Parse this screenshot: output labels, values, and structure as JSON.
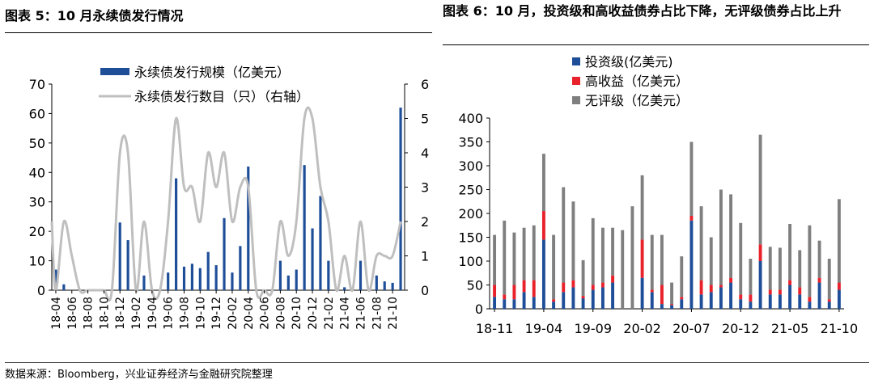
{
  "left_title": "图表 5：10 月永续债发行情况",
  "right_title": "图表 6：10 月，投资级和高收益债券占比下降，无评级债券占比上升",
  "source": "数据来源：Bloomberg，兴业证券经济与金融研究院整理",
  "chart_data": [
    {
      "type": "bar+line",
      "legend": [
        "永续债发行规模（亿美元）",
        "永续债发行数目（只）（右轴）"
      ],
      "ylim": [
        0,
        70
      ],
      "y_ticks": [
        0,
        10,
        20,
        30,
        40,
        50,
        60,
        70
      ],
      "y2lim": [
        0,
        6
      ],
      "y2_ticks": [
        0,
        1,
        2,
        3,
        4,
        5,
        6
      ],
      "x_tick_labels": [
        "18-04",
        "18-06",
        "18-08",
        "18-10",
        "18-12",
        "19-02",
        "19-04",
        "19-06",
        "19-08",
        "19-10",
        "19-12",
        "20-02",
        "20-04",
        "20-06",
        "20-08",
        "20-10",
        "20-12",
        "21-02",
        "21-04",
        "21-06",
        "21-08",
        "21-10"
      ],
      "colors": {
        "bar": "#1F4E99",
        "line": "#BFBFBF"
      },
      "series": [
        {
          "name": "永续债发行规模（亿美元）",
          "kind": "bar",
          "values": [
            7,
            2,
            0,
            0,
            0,
            0,
            0,
            0,
            23,
            17,
            0,
            5,
            0,
            0,
            6,
            38,
            8,
            9,
            7.5,
            13,
            8.5,
            24.5,
            6,
            15,
            42,
            0,
            0,
            0,
            10,
            5,
            7,
            42.5,
            21,
            32,
            10,
            0,
            1,
            0,
            10,
            0,
            5,
            3,
            2.5,
            62
          ]
        },
        {
          "name": "永续债发行数目（只）（右轴）",
          "kind": "line",
          "values": [
            0,
            2,
            1,
            0,
            0,
            0,
            0,
            0,
            4,
            4,
            0,
            2,
            0,
            0,
            2,
            5,
            3,
            3,
            2,
            4,
            3,
            4,
            2,
            3,
            3,
            0,
            0,
            0,
            2,
            1,
            2,
            5,
            5,
            3,
            2,
            0,
            1,
            0,
            2,
            0,
            1,
            1,
            1,
            2
          ]
        }
      ]
    },
    {
      "type": "stacked-bar",
      "legend": [
        "投资级(亿美元)",
        "高收益（亿美元）",
        "无评级（亿美元）"
      ],
      "ylim": [
        0,
        400
      ],
      "y_ticks": [
        0,
        50,
        100,
        150,
        200,
        250,
        300,
        350,
        400
      ],
      "x_tick_labels": [
        "18-11",
        "19-04",
        "19-09",
        "20-02",
        "20-07",
        "20-12",
        "21-05",
        "21-10"
      ],
      "colors": {
        "ig": "#1F4E99",
        "hy": "#E8212B",
        "nr": "#7F7F7F"
      },
      "series": [
        {
          "name": "投资级(亿美元)",
          "values": [
            25,
            20,
            20,
            35,
            25,
            145,
            15,
            35,
            45,
            22,
            40,
            45,
            55,
            0,
            0,
            65,
            35,
            10,
            8,
            20,
            185,
            30,
            35,
            45,
            55,
            20,
            15,
            100,
            30,
            30,
            50,
            30,
            15,
            55,
            15,
            40
          ]
        },
        {
          "name": "高收益（亿美元）",
          "values": [
            25,
            10,
            30,
            25,
            35,
            60,
            5,
            20,
            15,
            5,
            10,
            10,
            15,
            0,
            0,
            80,
            5,
            40,
            2,
            5,
            10,
            30,
            15,
            5,
            10,
            10,
            15,
            35,
            10,
            10,
            10,
            15,
            10,
            10,
            5,
            15
          ]
        },
        {
          "name": "无评级（亿美元）",
          "values": [
            105,
            155,
            110,
            110,
            115,
            120,
            135,
            200,
            165,
            75,
            140,
            115,
            100,
            165,
            215,
            135,
            115,
            105,
            45,
            85,
            155,
            155,
            100,
            200,
            175,
            150,
            75,
            230,
            90,
            88,
            118,
            78,
            150,
            78,
            85,
            175
          ]
        }
      ]
    }
  ]
}
